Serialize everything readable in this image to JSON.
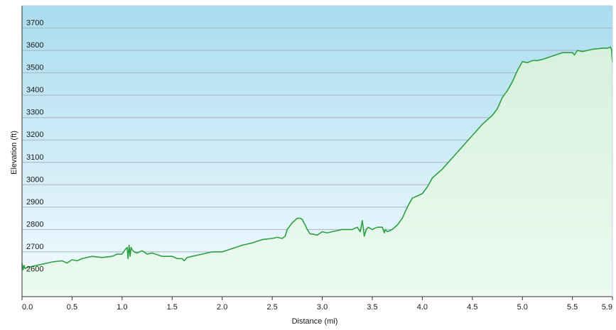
{
  "chart_data": {
    "type": "area",
    "title": "",
    "xlabel": "Distance (mi)",
    "ylabel": "Elevation (ft)",
    "xlim": [
      0,
      5.9
    ],
    "ylim": [
      2500,
      3800
    ],
    "x_ticks": [
      0.0,
      0.5,
      1.0,
      1.5,
      2.0,
      2.5,
      3.0,
      3.5,
      4.0,
      4.5,
      5.0,
      5.5,
      5.9
    ],
    "x_tick_labels": [
      "0.0",
      "0.5",
      "1.0",
      "1.5",
      "2.0",
      "2.5",
      "3.0",
      "3.5",
      "4.0",
      "4.5",
      "5.0",
      "5.5",
      "5.9"
    ],
    "y_ticks": [
      2600,
      2700,
      2800,
      2900,
      3000,
      3100,
      3200,
      3300,
      3400,
      3500,
      3600,
      3700
    ],
    "y_tick_labels": [
      "2600",
      "2700",
      "2800",
      "2900",
      "3000",
      "3100",
      "3200",
      "3300",
      "3400",
      "3500",
      "3600",
      "3700"
    ],
    "grid": true,
    "colors": {
      "line": "#2ea043",
      "fill_top": "#d6f1dc",
      "fill_bottom": "#ecfaf0",
      "bg_top": "#a9dcef",
      "bg_bottom": "#f5fbff",
      "grid": "#a8b4bf",
      "axis": "#333333"
    },
    "series": [
      {
        "x": [
          0.0,
          0.01,
          0.02,
          0.03,
          0.05,
          0.1,
          0.2,
          0.3,
          0.4,
          0.45,
          0.5,
          0.55,
          0.6,
          0.7,
          0.8,
          0.9,
          0.95,
          1.0,
          1.03,
          1.05,
          1.06,
          1.07,
          1.08,
          1.09,
          1.1,
          1.12,
          1.15,
          1.2,
          1.25,
          1.3,
          1.4,
          1.5,
          1.55,
          1.6,
          1.62,
          1.65,
          1.7,
          1.8,
          1.9,
          2.0,
          2.1,
          2.2,
          2.3,
          2.4,
          2.5,
          2.55,
          2.6,
          2.63,
          2.65,
          2.7,
          2.75,
          2.78,
          2.8,
          2.83,
          2.85,
          2.88,
          2.9,
          2.95,
          3.0,
          3.05,
          3.1,
          3.2,
          3.3,
          3.35,
          3.38,
          3.4,
          3.42,
          3.44,
          3.46,
          3.5,
          3.55,
          3.6,
          3.62,
          3.63,
          3.65,
          3.7,
          3.75,
          3.8,
          3.85,
          3.9,
          3.95,
          4.0,
          4.05,
          4.1,
          4.15,
          4.2,
          4.3,
          4.4,
          4.5,
          4.6,
          4.7,
          4.75,
          4.8,
          4.85,
          4.9,
          4.95,
          5.0,
          5.05,
          5.1,
          5.15,
          5.2,
          5.3,
          5.4,
          5.5,
          5.52,
          5.55,
          5.6,
          5.7,
          5.8,
          5.85,
          5.88,
          5.89,
          5.9
        ],
        "values": [
          2650,
          2620,
          2640,
          2625,
          2630,
          2635,
          2645,
          2655,
          2660,
          2650,
          2665,
          2660,
          2670,
          2680,
          2675,
          2680,
          2690,
          2690,
          2710,
          2720,
          2670,
          2730,
          2680,
          2720,
          2710,
          2700,
          2695,
          2705,
          2690,
          2695,
          2680,
          2680,
          2670,
          2670,
          2660,
          2675,
          2680,
          2690,
          2700,
          2700,
          2715,
          2730,
          2740,
          2755,
          2760,
          2765,
          2760,
          2770,
          2800,
          2830,
          2850,
          2850,
          2845,
          2820,
          2800,
          2780,
          2780,
          2775,
          2790,
          2785,
          2790,
          2800,
          2800,
          2810,
          2790,
          2840,
          2770,
          2800,
          2810,
          2800,
          2810,
          2810,
          2785,
          2800,
          2790,
          2800,
          2820,
          2850,
          2900,
          2940,
          2950,
          2960,
          2990,
          3030,
          3050,
          3070,
          3120,
          3170,
          3220,
          3270,
          3310,
          3340,
          3390,
          3420,
          3460,
          3510,
          3550,
          3545,
          3555,
          3555,
          3560,
          3575,
          3590,
          3590,
          3580,
          3600,
          3595,
          3605,
          3610,
          3610,
          3615,
          3605,
          3545
        ]
      }
    ]
  }
}
